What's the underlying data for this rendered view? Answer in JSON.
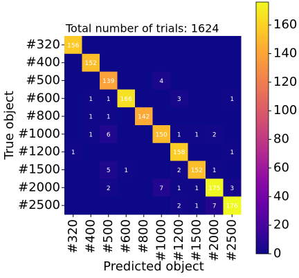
{
  "chart_data": {
    "type": "heatmap",
    "title": "Total number of trials: 1624",
    "x_label": "Predicted object",
    "y_label": "True object",
    "x_categories": [
      "#320",
      "#400",
      "#500",
      "#600",
      "#800",
      "#1000",
      "#1200",
      "#1500",
      "#2000",
      "#2500"
    ],
    "y_categories": [
      "#320",
      "#400",
      "#500",
      "#600",
      "#800",
      "#1000",
      "#1200",
      "#1500",
      "#2000",
      "#2500"
    ],
    "values": [
      [
        156,
        0,
        0,
        0,
        0,
        0,
        0,
        0,
        0,
        0
      ],
      [
        0,
        152,
        0,
        0,
        0,
        0,
        0,
        0,
        0,
        0
      ],
      [
        0,
        0,
        139,
        0,
        0,
        4,
        0,
        0,
        0,
        0
      ],
      [
        0,
        1,
        1,
        166,
        0,
        0,
        3,
        0,
        0,
        1
      ],
      [
        0,
        1,
        1,
        0,
        142,
        0,
        0,
        0,
        0,
        0
      ],
      [
        0,
        1,
        6,
        0,
        0,
        150,
        1,
        1,
        2,
        0
      ],
      [
        1,
        0,
        0,
        0,
        0,
        0,
        158,
        0,
        0,
        1
      ],
      [
        0,
        0,
        5,
        1,
        0,
        0,
        2,
        152,
        1,
        0
      ],
      [
        0,
        0,
        2,
        0,
        0,
        7,
        1,
        1,
        175,
        3
      ],
      [
        0,
        0,
        0,
        0,
        0,
        0,
        2,
        1,
        7,
        176
      ]
    ],
    "colormap": "plasma",
    "clim": [
      0,
      176
    ],
    "cticks": [
      0,
      20,
      40,
      60,
      80,
      100,
      120,
      140,
      160
    ]
  }
}
